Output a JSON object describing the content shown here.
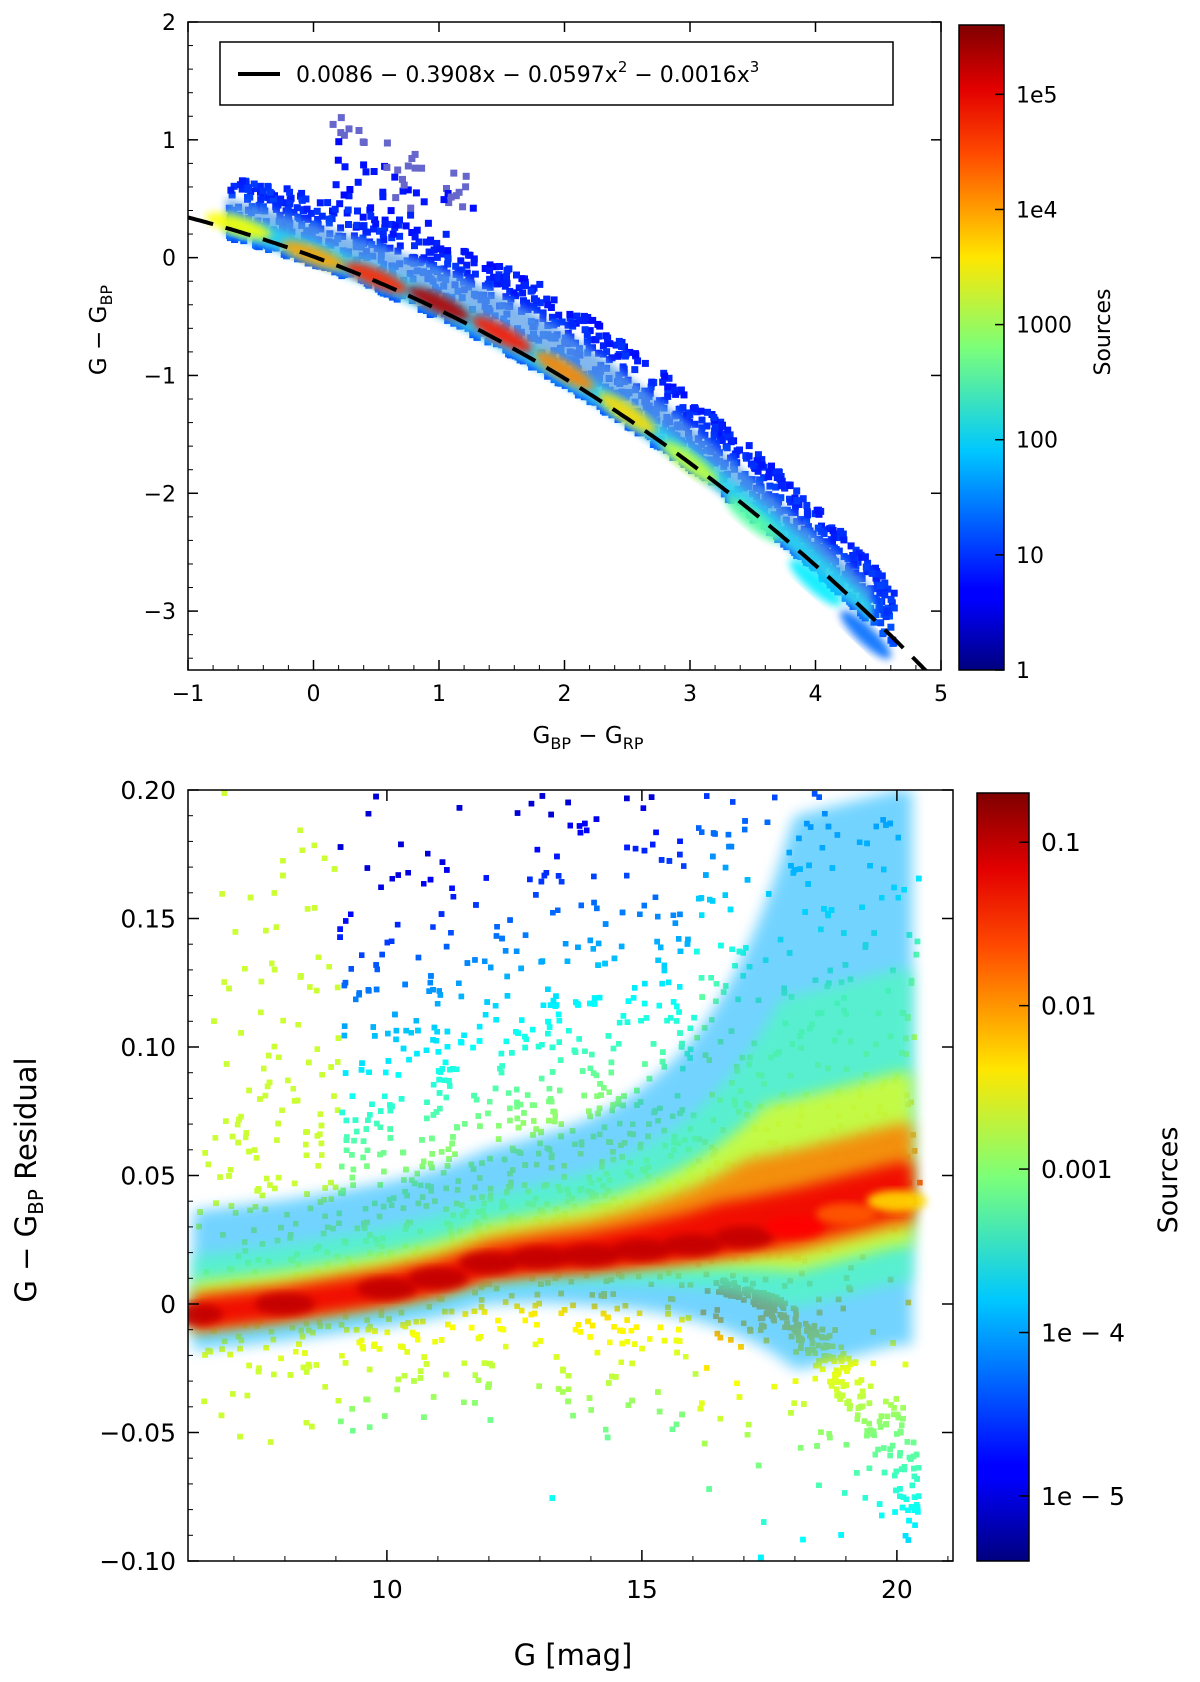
{
  "chart_data": [
    {
      "type": "heatmap",
      "xlabel": {
        "main": "G",
        "sub": "BP",
        "mid": " − G",
        "sub2": "RP"
      },
      "ylabel": {
        "main": "G − G",
        "sub": "BP"
      },
      "xlim": [
        -1,
        5
      ],
      "ylim": [
        -3.5,
        2
      ],
      "xticks": [
        -1,
        0,
        1,
        2,
        3,
        4,
        5
      ],
      "xtick_labels": [
        "−1",
        "0",
        "1",
        "2",
        "3",
        "4",
        "5"
      ],
      "yticks": [
        -3,
        -2,
        -1,
        0,
        1,
        2
      ],
      "ytick_labels": [
        "−3",
        "−2",
        "−1",
        "0",
        "1",
        "2"
      ],
      "legend": {
        "placement": "top",
        "label": "0.0086 − 0.3908x − 0.0597x",
        "sup1": "2",
        "mid": " − 0.0016x",
        "sup2": "3"
      },
      "fit": {
        "style": "dashed",
        "color": "#000000",
        "coefficients": [
          0.0086,
          -0.3908,
          -0.0597,
          -0.0016
        ]
      },
      "density_ridge": [
        {
          "x": -0.6,
          "y": 0.24,
          "count": 3000
        },
        {
          "x": 0.0,
          "y": -0.01,
          "count": 10000
        },
        {
          "x": 0.5,
          "y": -0.2,
          "count": 50000
        },
        {
          "x": 1.0,
          "y": -0.42,
          "count": 200000
        },
        {
          "x": 1.5,
          "y": -0.68,
          "count": 60000
        },
        {
          "x": 2.0,
          "y": -0.99,
          "count": 15000
        },
        {
          "x": 2.5,
          "y": -1.35,
          "count": 5000
        },
        {
          "x": 3.0,
          "y": -1.77,
          "count": 1500
        },
        {
          "x": 3.5,
          "y": -2.25,
          "count": 400
        },
        {
          "x": 4.0,
          "y": -2.79,
          "count": 100
        },
        {
          "x": 4.4,
          "y": -3.23,
          "count": 20
        }
      ],
      "colorbar": {
        "label": "Sources",
        "scale": "log",
        "range": [
          1,
          400000
        ],
        "ticks": [
          1,
          10,
          100,
          1000,
          10000,
          100000
        ],
        "tick_labels": [
          "1",
          "10",
          "100",
          "1000",
          "1e4",
          "1e5"
        ]
      },
      "colors": {
        "sparse": "#6666cc",
        "dense": "#800000"
      }
    },
    {
      "type": "heatmap",
      "xlabel": {
        "main": "G [mag]"
      },
      "ylabel": {
        "main": "G − G",
        "sub": "BP",
        "rest": " Residual"
      },
      "xlim": [
        6.1,
        21.1
      ],
      "ylim": [
        -0.1,
        0.2
      ],
      "xticks": [
        10,
        15,
        20
      ],
      "xtick_labels": [
        "10",
        "15",
        "20"
      ],
      "yticks": [
        -0.1,
        -0.05,
        0,
        0.05,
        0.1,
        0.15,
        0.2
      ],
      "ytick_labels": [
        "−0.10",
        "−0.05",
        "0",
        "0.05",
        "0.10",
        "0.15",
        "0.20"
      ],
      "density_ridge": [
        {
          "x": 6.2,
          "y": -0.004,
          "density": 0.1
        },
        {
          "x": 8.0,
          "y": 0.0,
          "density": 0.1
        },
        {
          "x": 10.0,
          "y": 0.006,
          "density": 0.1
        },
        {
          "x": 11.0,
          "y": 0.01,
          "density": 0.1
        },
        {
          "x": 12.0,
          "y": 0.016,
          "density": 0.1
        },
        {
          "x": 13.0,
          "y": 0.018,
          "density": 0.1
        },
        {
          "x": 14.0,
          "y": 0.019,
          "density": 0.1
        },
        {
          "x": 15.0,
          "y": 0.021,
          "density": 0.1
        },
        {
          "x": 16.0,
          "y": 0.023,
          "density": 0.1
        },
        {
          "x": 17.0,
          "y": 0.026,
          "density": 0.1
        },
        {
          "x": 18.0,
          "y": 0.03,
          "density": 0.05
        },
        {
          "x": 19.0,
          "y": 0.035,
          "density": 0.02
        },
        {
          "x": 20.0,
          "y": 0.04,
          "density": 0.005
        }
      ],
      "colorbar": {
        "label": "Sources",
        "scale": "log",
        "range": [
          4e-06,
          0.2
        ],
        "ticks": [
          1e-05,
          0.0001,
          0.001,
          0.01,
          0.1
        ],
        "tick_labels": [
          "1e − 5",
          "1e − 4",
          "0.001",
          "0.01",
          "0.1"
        ]
      }
    }
  ]
}
